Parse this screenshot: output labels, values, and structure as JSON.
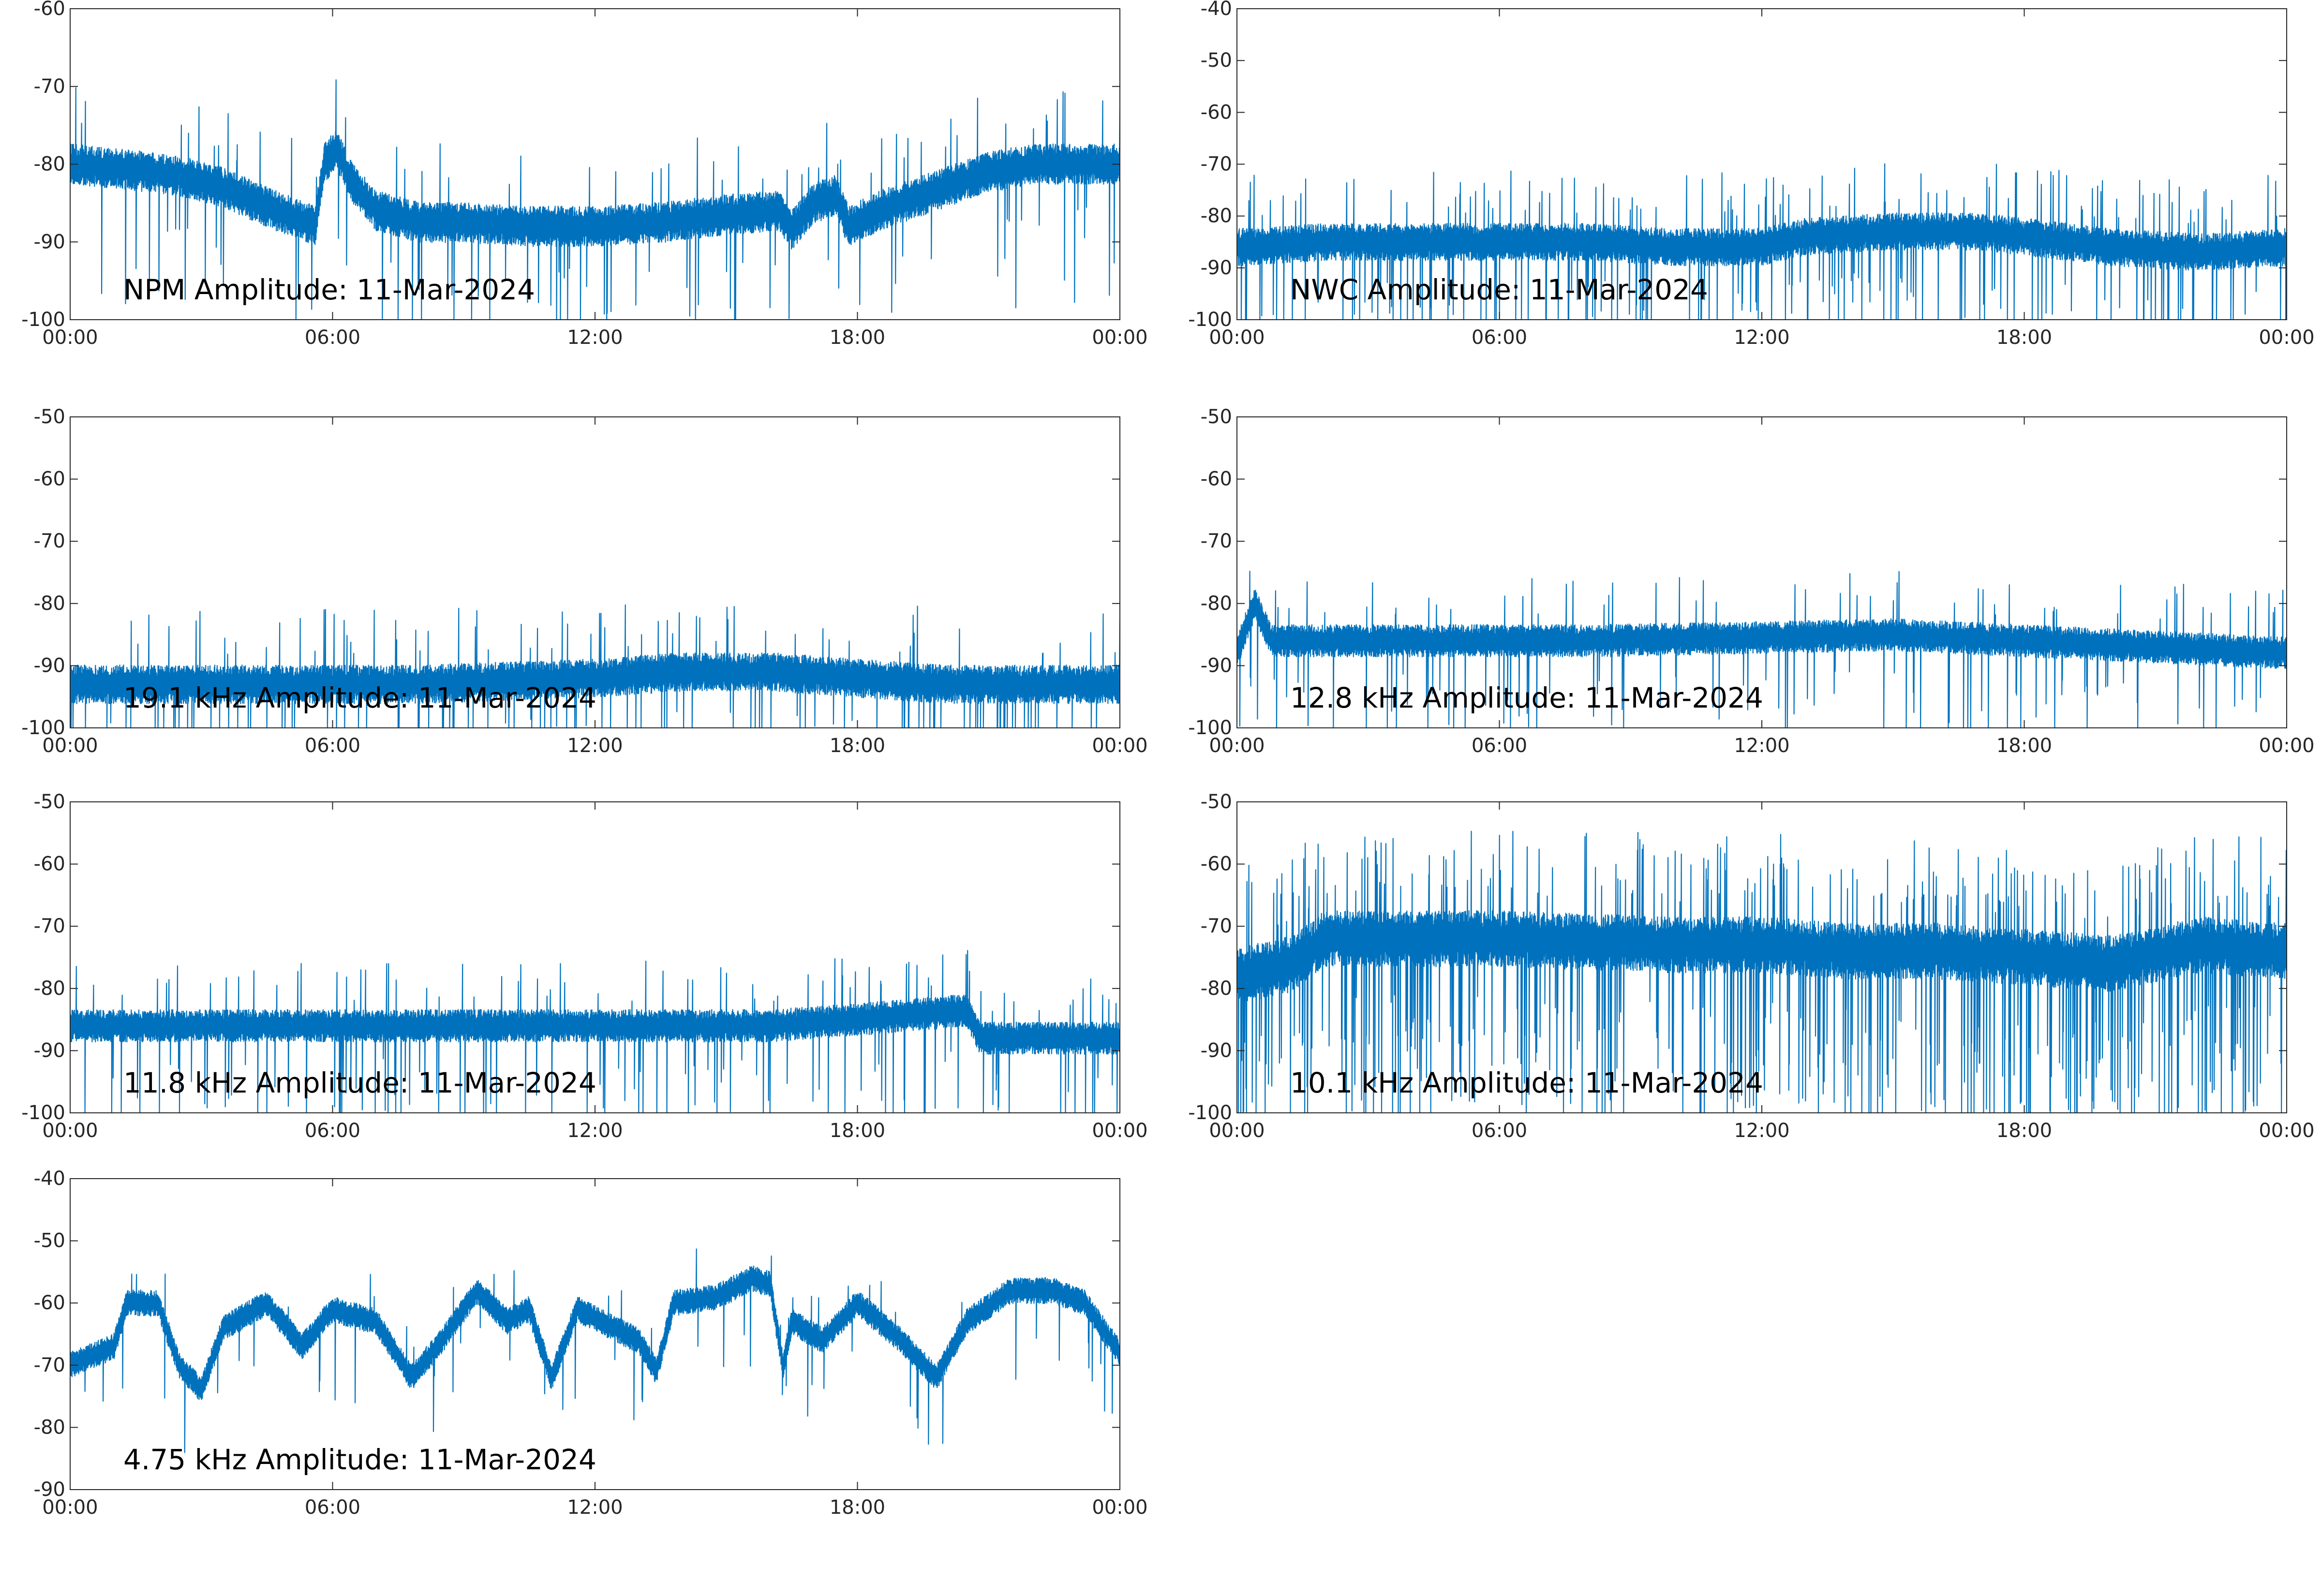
{
  "figure": {
    "line_color": "#0072BD",
    "background": "#ffffff",
    "axes_color": "#262626"
  },
  "chart_data": [
    {
      "type": "line",
      "title": "NPM Amplitude: 11-Mar-2024",
      "x_ticks": [
        "00:00",
        "06:00",
        "12:00",
        "18:00",
        "00:00"
      ],
      "xlim_hours": [
        0,
        24
      ],
      "ylim": [
        -100,
        -60
      ],
      "y_ticks": [
        -100,
        -90,
        -80,
        -70,
        -60
      ],
      "noise": 2.6,
      "spikes": 0.07,
      "anchors": [
        [
          0,
          -80
        ],
        [
          1.0,
          -80.5
        ],
        [
          2.5,
          -81.5
        ],
        [
          3.5,
          -83
        ],
        [
          4.5,
          -85.5
        ],
        [
          5.6,
          -88
        ],
        [
          5.8,
          -80
        ],
        [
          6.1,
          -78
        ],
        [
          6.4,
          -82
        ],
        [
          7.0,
          -86
        ],
        [
          8.0,
          -87.5
        ],
        [
          9.0,
          -87.5
        ],
        [
          10.5,
          -88
        ],
        [
          12.0,
          -88
        ],
        [
          13.5,
          -87.5
        ],
        [
          15.0,
          -86.5
        ],
        [
          16.2,
          -86
        ],
        [
          16.5,
          -88.5
        ],
        [
          17.0,
          -85
        ],
        [
          17.5,
          -84
        ],
        [
          17.8,
          -88
        ],
        [
          18.5,
          -86
        ],
        [
          20.0,
          -83
        ],
        [
          21.0,
          -81
        ],
        [
          22.0,
          -80
        ],
        [
          24.0,
          -80
        ]
      ]
    },
    {
      "type": "line",
      "title": "NWC Amplitude: 11-Mar-2024",
      "x_ticks": [
        "00:00",
        "06:00",
        "12:00",
        "18:00",
        "00:00"
      ],
      "xlim_hours": [
        0,
        24
      ],
      "ylim": [
        -100,
        -40
      ],
      "y_ticks": [
        -100,
        -90,
        -80,
        -70,
        -60,
        -50,
        -40
      ],
      "noise": 3.6,
      "spikes": 0.13,
      "anchors": [
        [
          0,
          -86
        ],
        [
          2.0,
          -85
        ],
        [
          4.0,
          -85
        ],
        [
          6.0,
          -85
        ],
        [
          8.0,
          -85
        ],
        [
          10.0,
          -86
        ],
        [
          12.0,
          -86
        ],
        [
          13.0,
          -84
        ],
        [
          15.0,
          -83
        ],
        [
          17.0,
          -83
        ],
        [
          18.0,
          -84
        ],
        [
          20.0,
          -86
        ],
        [
          22.0,
          -87
        ],
        [
          24.0,
          -86
        ]
      ]
    },
    {
      "type": "line",
      "title": "19.1 kHz Amplitude: 11-Mar-2024",
      "x_ticks": [
        "00:00",
        "06:00",
        "12:00",
        "18:00",
        "00:00"
      ],
      "xlim_hours": [
        0,
        24
      ],
      "ylim": [
        -100,
        -50
      ],
      "y_ticks": [
        -100,
        -90,
        -80,
        -70,
        -60,
        -50
      ],
      "noise": 3.1,
      "spikes": 0.1,
      "anchors": [
        [
          0,
          -93
        ],
        [
          4.0,
          -93
        ],
        [
          8.0,
          -93
        ],
        [
          12.0,
          -92
        ],
        [
          14.0,
          -91
        ],
        [
          16.0,
          -91
        ],
        [
          18.0,
          -92
        ],
        [
          20.0,
          -93
        ],
        [
          24.0,
          -93
        ]
      ]
    },
    {
      "type": "line",
      "title": "12.8 kHz Amplitude: 11-Mar-2024",
      "x_ticks": [
        "00:00",
        "06:00",
        "12:00",
        "18:00",
        "00:00"
      ],
      "xlim_hours": [
        0,
        24
      ],
      "ylim": [
        -100,
        -50
      ],
      "y_ticks": [
        -100,
        -90,
        -80,
        -70,
        -60,
        -50
      ],
      "noise": 2.6,
      "spikes": 0.07,
      "anchors": [
        [
          0,
          -88
        ],
        [
          0.4,
          -80
        ],
        [
          0.8,
          -86
        ],
        [
          4.0,
          -86
        ],
        [
          8.0,
          -86
        ],
        [
          12.0,
          -85.5
        ],
        [
          15.0,
          -85
        ],
        [
          18.0,
          -86
        ],
        [
          21.0,
          -87
        ],
        [
          24.0,
          -88
        ]
      ]
    },
    {
      "type": "line",
      "title": "11.8 kHz Amplitude: 11-Mar-2024",
      "x_ticks": [
        "00:00",
        "06:00",
        "12:00",
        "18:00",
        "00:00"
      ],
      "xlim_hours": [
        0,
        24
      ],
      "ylim": [
        -100,
        -50
      ],
      "y_ticks": [
        -100,
        -90,
        -80,
        -70,
        -60,
        -50
      ],
      "noise": 2.6,
      "spikes": 0.08,
      "anchors": [
        [
          0,
          -86
        ],
        [
          4.0,
          -86
        ],
        [
          8.0,
          -86
        ],
        [
          12.0,
          -86
        ],
        [
          16.0,
          -86
        ],
        [
          18.0,
          -85
        ],
        [
          20.5,
          -83.5
        ],
        [
          20.8,
          -88
        ],
        [
          24.0,
          -88
        ]
      ]
    },
    {
      "type": "line",
      "title": "10.1 kHz Amplitude: 11-Mar-2024",
      "x_ticks": [
        "00:00",
        "06:00",
        "12:00",
        "18:00",
        "00:00"
      ],
      "xlim_hours": [
        0,
        24
      ],
      "ylim": [
        -100,
        -50
      ],
      "y_ticks": [
        -100,
        -90,
        -80,
        -70,
        -60,
        -50
      ],
      "noise": 4.5,
      "spikes": 0.26,
      "anchors": [
        [
          0,
          -78
        ],
        [
          1.3,
          -76
        ],
        [
          2.0,
          -72
        ],
        [
          6.0,
          -72
        ],
        [
          10.0,
          -73
        ],
        [
          12.0,
          -73
        ],
        [
          14.0,
          -74
        ],
        [
          16.0,
          -74
        ],
        [
          18.0,
          -75
        ],
        [
          20.0,
          -76
        ],
        [
          22.0,
          -73
        ],
        [
          24.0,
          -74
        ]
      ]
    },
    {
      "type": "line",
      "title": "4.75 kHz Amplitude: 11-Mar-2024",
      "x_ticks": [
        "00:00",
        "06:00",
        "12:00",
        "18:00",
        "00:00"
      ],
      "xlim_hours": [
        0,
        24
      ],
      "ylim": [
        -90,
        -40
      ],
      "y_ticks": [
        -90,
        -80,
        -70,
        -60,
        -50,
        -40
      ],
      "noise": 2.1,
      "spikes": 0.03,
      "anchors": [
        [
          0,
          -70
        ],
        [
          1.0,
          -67
        ],
        [
          1.3,
          -60
        ],
        [
          2.0,
          -60
        ],
        [
          2.5,
          -70
        ],
        [
          3.0,
          -74
        ],
        [
          3.5,
          -64
        ],
        [
          4.5,
          -60
        ],
        [
          5.3,
          -67
        ],
        [
          6.0,
          -61
        ],
        [
          7.0,
          -63
        ],
        [
          7.8,
          -72
        ],
        [
          8.5,
          -66
        ],
        [
          9.3,
          -58
        ],
        [
          10.0,
          -63
        ],
        [
          10.5,
          -61
        ],
        [
          11.0,
          -72
        ],
        [
          11.6,
          -61
        ],
        [
          12.4,
          -64
        ],
        [
          13.0,
          -66
        ],
        [
          13.4,
          -71
        ],
        [
          13.8,
          -60
        ],
        [
          14.8,
          -59
        ],
        [
          15.6,
          -56
        ],
        [
          16.0,
          -57
        ],
        [
          16.3,
          -70
        ],
        [
          16.5,
          -63
        ],
        [
          17.2,
          -66
        ],
        [
          18.0,
          -60
        ],
        [
          19.0,
          -66
        ],
        [
          19.8,
          -72
        ],
        [
          20.5,
          -63
        ],
        [
          21.5,
          -58
        ],
        [
          22.5,
          -58
        ],
        [
          23.2,
          -60
        ],
        [
          24.0,
          -68
        ]
      ]
    }
  ]
}
